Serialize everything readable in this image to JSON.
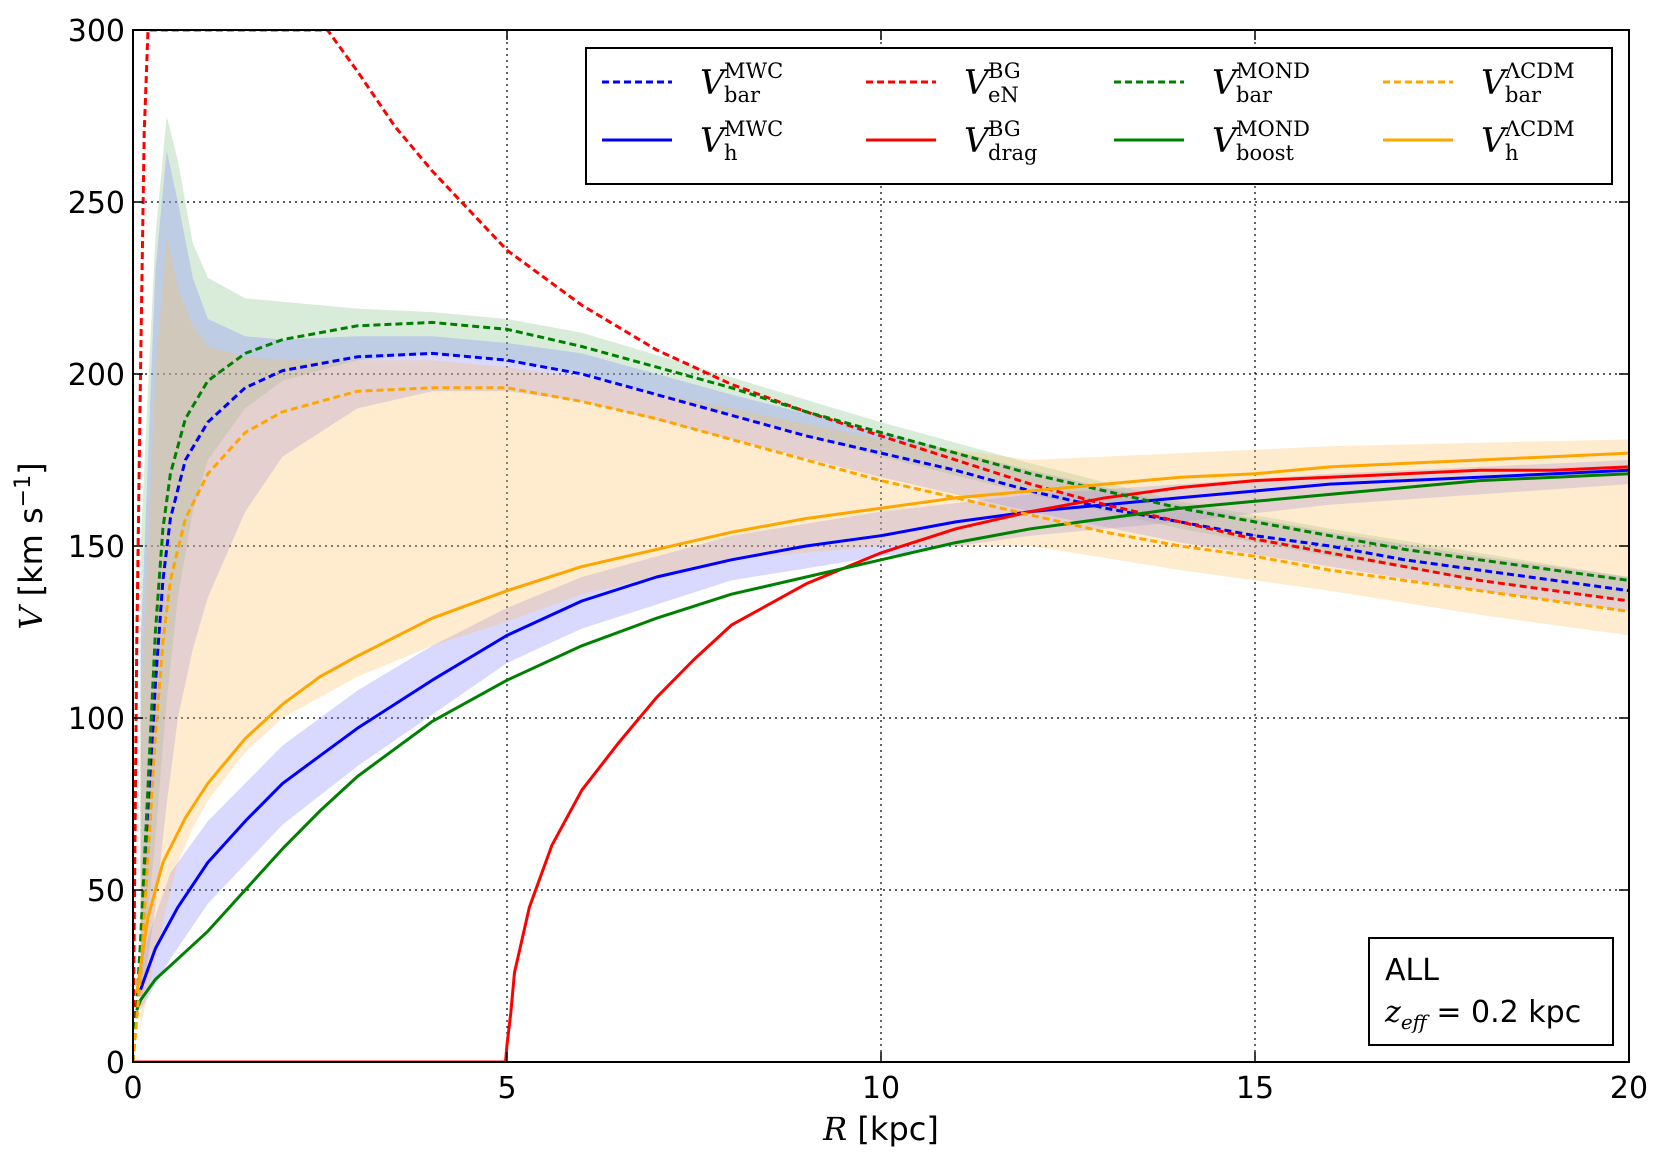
{
  "chart_data": {
    "type": "line",
    "xlabel": "R [kpc]",
    "ylabel": "V [km s⁻¹]",
    "xlim": [
      0,
      20
    ],
    "ylim": [
      0,
      300
    ],
    "xticks": [
      "0",
      "5",
      "10",
      "15",
      "20"
    ],
    "yticks": [
      "0",
      "50",
      "100",
      "150",
      "200",
      "250",
      "300"
    ],
    "grid": true,
    "legend_position": "top",
    "annotation": {
      "line1": "ALL",
      "line2_var": "z",
      "line2_sub": "eff",
      "line2_rest": "= 0.2 kpc"
    },
    "series": [
      {
        "id": "v_bar_mwc",
        "name_main": "V",
        "name_sub": "bar",
        "name_sup": "MWC",
        "color": "#0000ff",
        "dashed": true,
        "x": [
          0,
          0.1,
          0.2,
          0.3,
          0.4,
          0.5,
          0.7,
          1.0,
          1.5,
          2,
          3,
          4,
          5,
          6,
          7,
          8,
          9,
          10,
          11,
          12,
          13,
          14,
          15,
          16,
          17,
          18,
          19,
          20
        ],
        "y": [
          0,
          30,
          70,
          110,
          140,
          158,
          175,
          186,
          196,
          201,
          205,
          206,
          204,
          200,
          194,
          188,
          182,
          177,
          172,
          166,
          161,
          157,
          153,
          150,
          146,
          143,
          140,
          137
        ]
      },
      {
        "id": "v_h_mwc",
        "name_main": "V",
        "name_sub": "h",
        "name_sup": "MWC",
        "color": "#0000ff",
        "dashed": false,
        "x": [
          0.1,
          0.3,
          0.6,
          1,
          1.5,
          2,
          2.5,
          3,
          4,
          5,
          6,
          7,
          8,
          9,
          10,
          11,
          12,
          13,
          14,
          15,
          16,
          17,
          18,
          19,
          20
        ],
        "y": [
          21,
          33,
          45,
          58,
          70,
          81,
          89,
          97,
          111,
          124,
          134,
          141,
          146,
          150,
          153,
          157,
          160,
          162,
          164,
          166,
          168,
          169,
          170,
          171,
          172
        ]
      },
      {
        "id": "v_en_bg",
        "name_main": "V",
        "name_sub": "eN",
        "name_sup": "BG",
        "color": "#ff0000",
        "dashed": true,
        "x": [
          0,
          0.05,
          0.1,
          0.15,
          0.2,
          2.6,
          3,
          3.5,
          4,
          5,
          6,
          7,
          8,
          9,
          10,
          11,
          12,
          13,
          14,
          15,
          16,
          17,
          18,
          19,
          20
        ],
        "y": [
          0,
          120,
          200,
          270,
          300,
          300,
          288,
          272,
          259,
          236,
          220,
          207,
          197,
          189,
          182,
          175,
          168,
          162,
          157,
          152,
          148,
          144,
          140,
          137,
          134
        ]
      },
      {
        "id": "v_drag_bg",
        "name_main": "V",
        "name_sub": "drag",
        "name_sup": "BG",
        "color": "#ff0000",
        "dashed": false,
        "x": [
          0,
          4.98,
          5.0,
          5.05,
          5.1,
          5.3,
          5.6,
          6,
          6.5,
          7,
          7.5,
          8,
          9,
          10,
          11,
          12,
          13,
          14,
          15,
          16,
          17,
          18,
          19,
          20
        ],
        "y": [
          0,
          0,
          5,
          14,
          26,
          45,
          63,
          79,
          93,
          106,
          117,
          127,
          139,
          148,
          155,
          160,
          164,
          167,
          169,
          170,
          171,
          172,
          172,
          173
        ]
      },
      {
        "id": "v_bar_mond",
        "name_main": "V",
        "name_sub": "bar",
        "name_sup": "MOND",
        "color": "#008000",
        "dashed": true,
        "x": [
          0,
          0.1,
          0.2,
          0.3,
          0.4,
          0.5,
          0.7,
          1.0,
          1.5,
          2,
          3,
          4,
          5,
          6,
          7,
          8,
          9,
          10,
          11,
          12,
          13,
          14,
          15,
          16,
          17,
          18,
          19,
          20
        ],
        "y": [
          0,
          35,
          80,
          125,
          155,
          171,
          187,
          198,
          206,
          210,
          214,
          215,
          213,
          208,
          202,
          196,
          189,
          183,
          177,
          171,
          166,
          161,
          157,
          153,
          149,
          146,
          143,
          140
        ]
      },
      {
        "id": "v_boost_mond",
        "name_main": "V",
        "name_sub": "boost",
        "name_sup": "MOND",
        "color": "#008000",
        "dashed": false,
        "x": [
          0.05,
          0.1,
          0.3,
          0.5,
          1.0,
          1.5,
          2,
          2.5,
          3,
          4,
          5,
          6,
          7,
          8,
          9,
          10,
          11,
          12,
          13,
          14,
          15,
          16,
          17,
          18,
          19,
          20
        ],
        "y": [
          15,
          18,
          24,
          28,
          38,
          50,
          62,
          73,
          83,
          99,
          111,
          121,
          129,
          136,
          141,
          146,
          151,
          155,
          158,
          161,
          163,
          165,
          167,
          169,
          170,
          171
        ]
      },
      {
        "id": "v_bar_lcdm",
        "name_main": "V",
        "name_sub": "bar",
        "name_sup": "ΛCDM",
        "color": "#ffa500",
        "dashed": true,
        "x": [
          0,
          0.1,
          0.2,
          0.3,
          0.4,
          0.5,
          0.7,
          1.0,
          1.5,
          2,
          3,
          4,
          5,
          6,
          7,
          8,
          9,
          10,
          11,
          12,
          13,
          14,
          15,
          16,
          17,
          18,
          19,
          20
        ],
        "y": [
          0,
          25,
          60,
          95,
          122,
          140,
          158,
          171,
          183,
          189,
          195,
          196,
          196,
          192,
          187,
          181,
          175,
          169,
          164,
          159,
          154,
          150,
          147,
          143,
          140,
          137,
          134,
          131
        ]
      },
      {
        "id": "v_h_lcdm",
        "name_main": "V",
        "name_sub": "h",
        "name_sup": "ΛCDM",
        "color": "#ffa500",
        "dashed": false,
        "x": [
          0.05,
          0.2,
          0.4,
          0.7,
          1,
          1.5,
          2,
          2.5,
          3,
          4,
          5,
          6,
          7,
          8,
          9,
          10,
          11,
          12,
          13,
          14,
          15,
          16,
          17,
          18,
          19,
          20
        ],
        "y": [
          20,
          42,
          58,
          71,
          81,
          94,
          104,
          112,
          118,
          129,
          137,
          144,
          149,
          154,
          158,
          161,
          164,
          166,
          168,
          170,
          171,
          173,
          174,
          175,
          176,
          177
        ]
      }
    ],
    "bands": [
      {
        "id": "band_mond_bar",
        "color": "#80c080",
        "x": [
          0.1,
          0.3,
          0.45,
          0.6,
          0.8,
          1.0,
          1.5,
          2,
          3,
          4,
          5,
          6,
          8,
          10,
          12,
          14,
          16,
          18,
          20
        ],
        "upper": [
          150,
          240,
          275,
          262,
          238,
          228,
          222,
          221,
          219,
          218,
          216,
          212,
          199,
          186,
          174,
          163,
          155,
          148,
          141
        ],
        "lower": [
          20,
          65,
          105,
          135,
          160,
          175,
          190,
          198,
          204,
          206,
          204,
          200,
          188,
          176,
          165,
          155,
          147,
          140,
          134
        ]
      },
      {
        "id": "band_mwc_bar",
        "color": "#8080ff",
        "x": [
          0.1,
          0.3,
          0.45,
          0.6,
          0.8,
          1.0,
          1.5,
          2,
          3,
          4,
          5,
          6,
          8,
          10,
          12,
          14,
          16,
          18,
          20
        ],
        "upper": [
          120,
          230,
          265,
          250,
          228,
          216,
          211,
          210,
          211,
          211,
          209,
          206,
          194,
          183,
          172,
          162,
          154,
          147,
          141
        ],
        "lower": [
          15,
          45,
          75,
          100,
          120,
          135,
          160,
          176,
          190,
          195,
          195,
          192,
          181,
          170,
          160,
          151,
          144,
          137,
          131
        ]
      },
      {
        "id": "band_mwc_h",
        "color": "#8080ff",
        "x": [
          0.1,
          0.5,
          1,
          2,
          3,
          4,
          5,
          6,
          8,
          10,
          12,
          14,
          16,
          18,
          20
        ],
        "upper": [
          30,
          55,
          70,
          92,
          108,
          121,
          132,
          141,
          153,
          160,
          165,
          168,
          171,
          173,
          175
        ],
        "lower": [
          15,
          30,
          46,
          69,
          86,
          101,
          116,
          126,
          140,
          147,
          153,
          157,
          162,
          165,
          168
        ]
      },
      {
        "id": "band_lcdm",
        "color": "#ffc060",
        "x": [
          0.1,
          0.3,
          0.45,
          0.6,
          0.8,
          1.0,
          1.5,
          2,
          3,
          4,
          5,
          6,
          8,
          10,
          12,
          14,
          16,
          18,
          20
        ],
        "upper": [
          100,
          200,
          240,
          225,
          214,
          208,
          205,
          204,
          204,
          204,
          202,
          199,
          190,
          181,
          175,
          177,
          179,
          180,
          181
        ],
        "lower": [
          10,
          30,
          45,
          58,
          68,
          76,
          90,
          100,
          112,
          121,
          128,
          136,
          146,
          150,
          150,
          143,
          137,
          130,
          124
        ]
      }
    ]
  }
}
